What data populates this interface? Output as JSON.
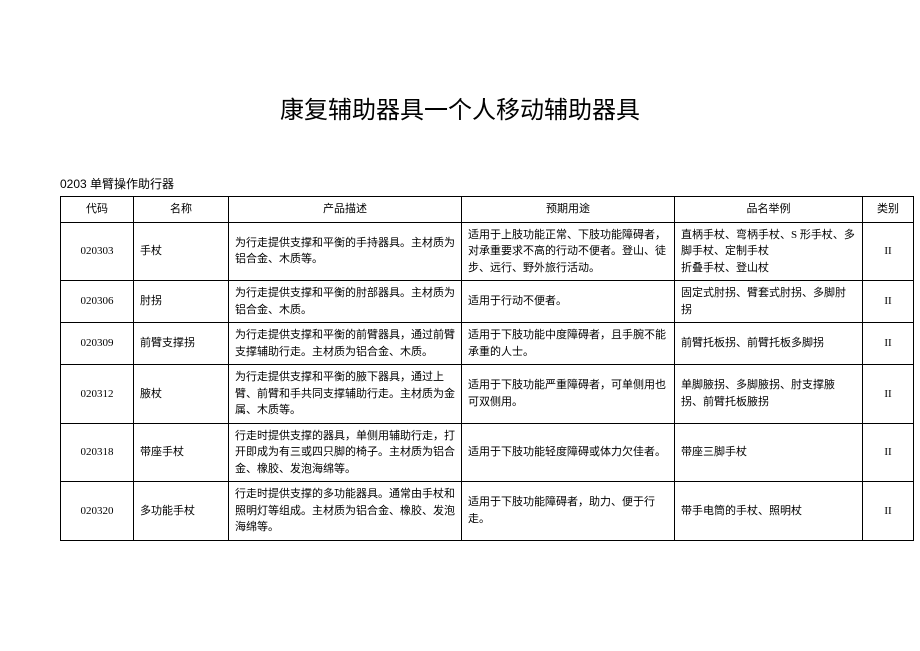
{
  "title": "康复辅助器具一个人移动辅助器具",
  "subtitle": "0203 单臂操作助行器",
  "columns": [
    "代码",
    "名称",
    "产品描述",
    "预期用途",
    "品名举例",
    "类别"
  ],
  "rows": [
    {
      "code": "020303",
      "name": "手杖",
      "desc": "为行走提供支撑和平衡的手持器具。主材质为铝合金、木质等。",
      "use": "适用于上肢功能正常、下肢功能障碍者，对承重要求不高的行动不便者。登山、徒步、远行、野外旅行活动。",
      "ex": "直柄手杖、弯柄手杖、S 形手杖、多脚手杖、定制手杖\n折叠手杖、登山杖",
      "cat": "II"
    },
    {
      "code": "020306",
      "name": "肘拐",
      "desc": "为行走提供支撑和平衡的肘部器具。主材质为铝合金、木质。",
      "use": "适用于行动不便者。",
      "ex": "固定式肘拐、臂套式肘拐、多脚肘拐",
      "cat": "II"
    },
    {
      "code": "020309",
      "name": "前臂支撑拐",
      "desc": "为行走提供支撑和平衡的前臂器具，通过前臂支撑辅助行走。主材质为铝合金、木质。",
      "use": "适用于下肢功能中度障碍者，且手腕不能承重的人士。",
      "ex": "前臂托板拐、前臂托板多脚拐",
      "cat": "II"
    },
    {
      "code": "020312",
      "name": "腋杖",
      "desc": "为行走提供支撑和平衡的腋下器具，通过上臂、前臂和手共同支撑辅助行走。主材质为金属、木质等。",
      "use": "适用于下肢功能严重障碍者，可单侧用也可双侧用。",
      "ex": "单脚腋拐、多脚腋拐、肘支撑腋拐、前臂托板腋拐",
      "cat": "II"
    },
    {
      "code": "020318",
      "name": "带座手杖",
      "desc": "行走时提供支撑的器具，单侧用辅助行走，打开即成为有三或四只脚的椅子。主材质为铝合金、橡胶、发泡海绵等。",
      "use": "适用于下肢功能轻度障碍或体力欠佳者。",
      "ex": "带座三脚手杖",
      "cat": "II"
    },
    {
      "code": "020320",
      "name": "多功能手杖",
      "desc": "行走时提供支撑的多功能器具。通常由手杖和照明灯等组成。主材质为铝合金、橡胶、发泡海绵等。",
      "use": "适用于下肢功能障碍者，助力、便于行走。",
      "ex": "带手电筒的手杖、照明杖",
      "cat": "II"
    }
  ]
}
